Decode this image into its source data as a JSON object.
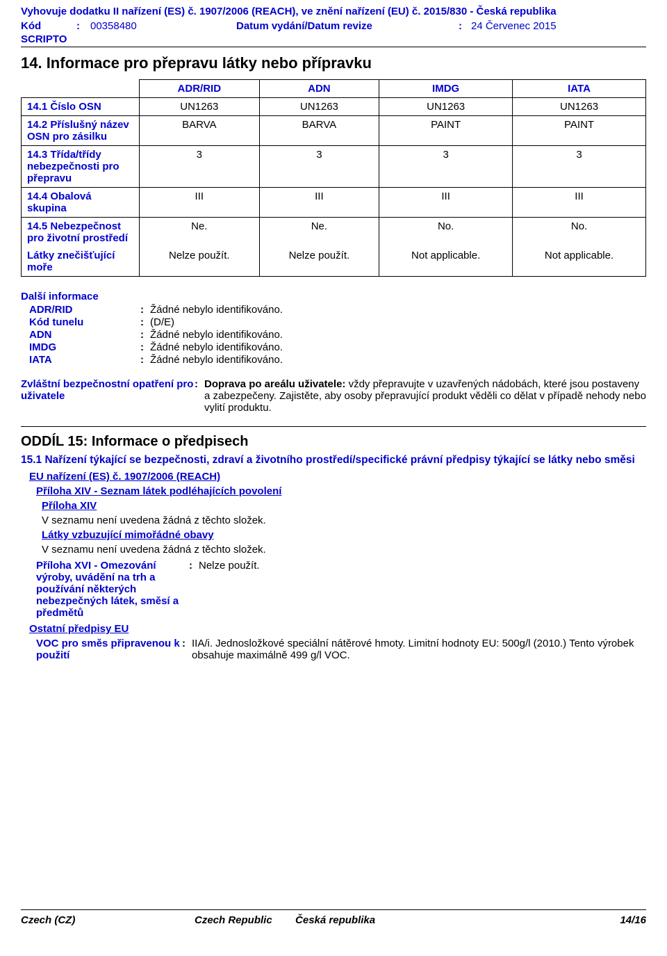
{
  "header": {
    "compliance": "Vyhovuje dodatku II nařízení (ES) č. 1907/2006 (REACH), ve znění nařízení (EU) č. 2015/830 - Česká republika",
    "kod_label": "Kód",
    "kod_value": "00358480",
    "datum_label": "Datum vydání/Datum revize",
    "datum_value": "24 Červenec 2015",
    "scripto": "SCRIPTO"
  },
  "section14": {
    "title": "14. Informace pro přepravu látky nebo přípravku",
    "columns": [
      "ADR/RID",
      "ADN",
      "IMDG",
      "IATA"
    ],
    "rows": {
      "r1": {
        "label": "14.1 Číslo OSN",
        "vals": [
          "UN1263",
          "UN1263",
          "UN1263",
          "UN1263"
        ]
      },
      "r2": {
        "label": "14.2 Příslušný název OSN pro zásilku",
        "vals": [
          "BARVA",
          "BARVA",
          "PAINT",
          "PAINT"
        ]
      },
      "r3": {
        "label": "14.3 Třída/třídy nebezpečnosti pro přepravu",
        "vals": [
          "3",
          "3",
          "3",
          "3"
        ]
      },
      "r4": {
        "label": "14.4 Obalová skupina",
        "vals": [
          "III",
          "III",
          "III",
          "III"
        ]
      },
      "r5a": {
        "label": "14.5 Nebezpečnost pro životní prostředí",
        "vals": [
          "Ne.",
          "Ne.",
          "No.",
          "No."
        ]
      },
      "r5b": {
        "label": "Látky znečišťující moře",
        "vals": [
          "Nelze použít.",
          "Nelze použít.",
          "Not applicable.",
          "Not applicable."
        ]
      }
    }
  },
  "further_info": {
    "title": "Další informace",
    "items": {
      "adr": {
        "label": "ADR/RID",
        "value": "Žádné nebylo identifikováno."
      },
      "tunel": {
        "label": "Kód tunelu",
        "value": "(D/E)"
      },
      "adn": {
        "label": "ADN",
        "value": "Žádné nebylo identifikováno."
      },
      "imdg": {
        "label": "IMDG",
        "value": "Žádné nebylo identifikováno."
      },
      "iata": {
        "label": "IATA",
        "value": "Žádné nebylo identifikováno."
      }
    }
  },
  "special": {
    "label": "Zvláštní bezpečnostní opatření pro uživatele",
    "bold_lead": "Doprava po areálu uživatele:",
    "text": " vždy přepravujte v uzavřených nádobách, které jsou postaveny a zabezpečeny. Zajistěte, aby osoby přepravující produkt věděli co dělat v případě nehody nebo vylití produktu."
  },
  "section15": {
    "title": "ODDÍL 15: Informace o předpisech",
    "sub1": "15.1 Nařízení týkající se bezpečnosti, zdraví a životního prostředí/specifické právní předpisy týkající se látky nebo směsi",
    "reach": "EU nařízení (ES) č. 1907/2006 (REACH)",
    "annex14_list": "Příloha XIV - Seznam látek podléhajících povolení",
    "annex14": "Příloha XIV",
    "not_listed1": "V seznamu není uvedena žádná z těchto složek.",
    "svhc": "Látky vzbuzující mimořádné obavy",
    "not_listed2": "V seznamu není uvedena žádná z těchto složek.",
    "annex17": {
      "label": "Příloha XVI - Omezování výroby, uvádění na trh a používání některých nebezpečných látek, směsí a předmětů",
      "value": "Nelze použít."
    },
    "other_eu": "Ostatní předpisy EU",
    "voc": {
      "label": "VOC pro směs připravenou k použití",
      "value": "IIA/i. Jednosložkové speciální nátěrové hmoty. Limitní hodnoty EU: 500g/l (2010.) Tento výrobek obsahuje maximálně 499 g/l VOC."
    }
  },
  "footer": {
    "lang": "Czech (CZ)",
    "country": "Czech Republic",
    "country2": "Česká republika",
    "page": "14/16"
  }
}
